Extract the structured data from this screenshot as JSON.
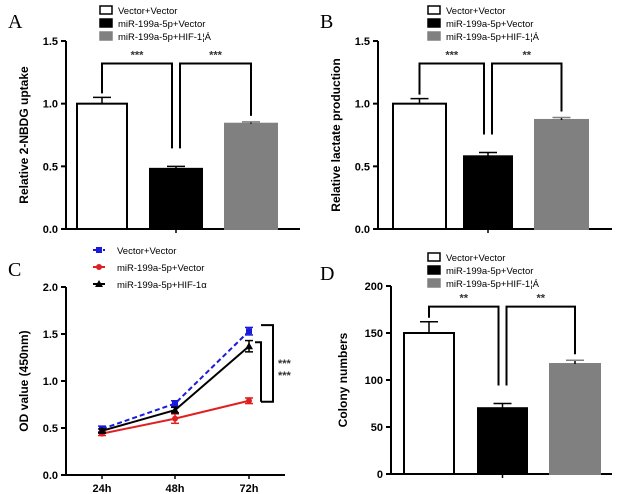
{
  "chart_data": [
    {
      "panel": "A",
      "type": "bar",
      "ylabel": "Relative 2-NBDG uptake",
      "ylim": [
        0,
        1.5
      ],
      "yticks": [
        "0.0",
        "0.5",
        "1.0",
        "1.5"
      ],
      "ytick_values": [
        0,
        0.5,
        1.0,
        1.5
      ],
      "categories": [
        "Vector+Vector",
        "miR-199a-5p+Vector",
        "miR-199a-5p+HIF-1¦Á"
      ],
      "values": [
        1.0,
        0.48,
        0.84
      ],
      "errors": [
        0.05,
        0.02,
        0.015
      ],
      "colors": [
        "#ffffff",
        "#000000",
        "#808080"
      ],
      "legend": [
        "Vector+Vector",
        "miR-199a-5p+Vector",
        "miR-199a-5p+HIF-1¦Á"
      ],
      "legend_placement": "top",
      "significance": [
        {
          "between": [
            0,
            1
          ],
          "label": "***",
          "y": 1.32
        },
        {
          "between": [
            1,
            2
          ],
          "label": "***",
          "y": 1.32
        }
      ]
    },
    {
      "panel": "B",
      "type": "bar",
      "ylabel": "Relative lactate production",
      "ylim": [
        0,
        1.5
      ],
      "yticks": [
        "0.0",
        "0.5",
        "1.0",
        "1.5"
      ],
      "ytick_values": [
        0,
        0.5,
        1.0,
        1.5
      ],
      "categories": [
        "Vector+Vector",
        "miR-199a-5p+Vector",
        "miR-199a-5p+HIF-1¦Á"
      ],
      "values": [
        1.0,
        0.58,
        0.87
      ],
      "errors": [
        0.04,
        0.03,
        0.02
      ],
      "colors": [
        "#ffffff",
        "#000000",
        "#808080"
      ],
      "legend": [
        "Vector+Vector",
        "miR-199a-5p+Vector",
        "miR-199a-5p+HIF-1¦Á"
      ],
      "legend_placement": "top",
      "significance": [
        {
          "between": [
            0,
            1
          ],
          "label": "***",
          "y": 1.32
        },
        {
          "between": [
            1,
            2
          ],
          "label": "**",
          "y": 1.32
        }
      ]
    },
    {
      "panel": "C",
      "type": "line",
      "ylabel": "OD value (450nm)",
      "ylim": [
        0,
        2.0
      ],
      "yticks": [
        "0.0",
        "0.5",
        "1.0",
        "1.5",
        "2.0"
      ],
      "ytick_values": [
        0,
        0.5,
        1.0,
        1.5,
        2.0
      ],
      "x": [
        "24h",
        "48h",
        "72h"
      ],
      "series": [
        {
          "name": "Vector+Vector",
          "values": [
            0.49,
            0.76,
            1.53
          ],
          "errors": [
            0.03,
            0.03,
            0.04
          ],
          "color": "#1a1adc",
          "dash": true,
          "marker": "square"
        },
        {
          "name": "miR-199a-5p+Vector",
          "values": [
            0.44,
            0.6,
            0.79
          ],
          "errors": [
            0.02,
            0.05,
            0.03
          ],
          "color": "#e02020",
          "dash": false,
          "marker": "circle"
        },
        {
          "name": "miR-199a-5p+HIF-1α",
          "values": [
            0.47,
            0.69,
            1.37
          ],
          "errors": [
            0.02,
            0.03,
            0.06
          ],
          "color": "#000000",
          "dash": false,
          "marker": "triangle"
        }
      ],
      "legend_placement": "top",
      "significance": [
        "***",
        "***"
      ]
    },
    {
      "panel": "D",
      "type": "bar",
      "ylabel": "Colony numbers",
      "ylim": [
        0,
        200
      ],
      "yticks": [
        "0",
        "50",
        "100",
        "150",
        "200"
      ],
      "ytick_values": [
        0,
        50,
        100,
        150,
        200
      ],
      "categories": [
        "Vector+Vector",
        "miR-199a-5p+Vector",
        "miR-199a-5p+HIF-1¦Á"
      ],
      "values": [
        150,
        70,
        117
      ],
      "errors": [
        12,
        5,
        4
      ],
      "colors": [
        "#ffffff",
        "#000000",
        "#808080"
      ],
      "legend": [
        "Vector+Vector",
        "miR-199a-5p+Vector",
        "miR-199a-5p+HIF-1¦Á"
      ],
      "legend_placement": "top",
      "significance": [
        {
          "between": [
            0,
            1
          ],
          "label": "**",
          "y": 178
        },
        {
          "between": [
            1,
            2
          ],
          "label": "**",
          "y": 178
        }
      ]
    }
  ]
}
